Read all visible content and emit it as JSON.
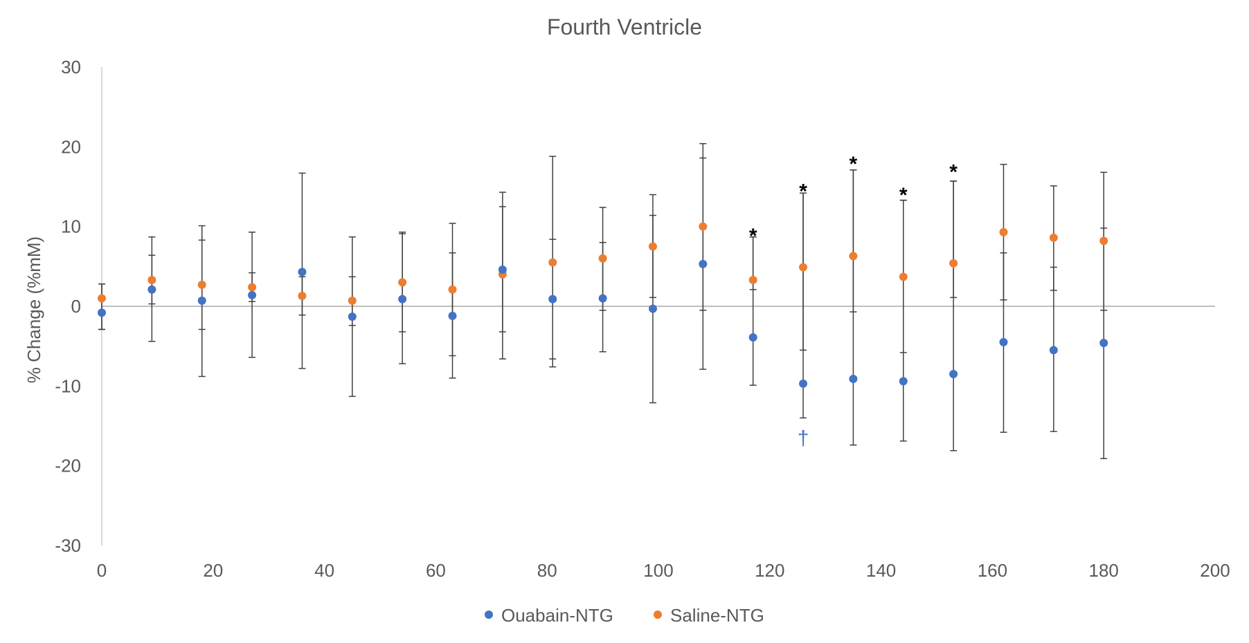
{
  "chart_data": {
    "type": "scatter",
    "title": "Fourth Ventricle",
    "xlabel": "",
    "ylabel": "% Change (%mM)",
    "xlim": [
      0,
      200
    ],
    "ylim": [
      -30,
      30
    ],
    "x_ticks": [
      0,
      20,
      40,
      60,
      80,
      100,
      120,
      140,
      160,
      180,
      200
    ],
    "y_ticks": [
      30,
      20,
      10,
      0,
      -10,
      -20,
      -30
    ],
    "grid": false,
    "legend_position": "bottom-center",
    "series": [
      {
        "name": "Ouabain-NTG",
        "color": "#4472C4",
        "x": [
          0,
          9,
          18,
          27,
          36,
          45,
          54,
          63,
          72,
          81,
          90,
          99,
          108,
          117,
          126,
          135,
          144,
          153,
          162,
          171,
          180
        ],
        "y": [
          -0.8,
          2.1,
          0.7,
          1.4,
          4.3,
          -1.3,
          0.9,
          -1.2,
          4.6,
          0.9,
          1.0,
          -0.3,
          5.3,
          -3.9,
          -9.7,
          -9.1,
          -9.4,
          -8.5,
          -4.5,
          -5.5,
          -4.6
        ],
        "err_low": [
          -2.9,
          -4.4,
          -8.8,
          -6.4,
          -7.8,
          -11.3,
          -7.2,
          -9.0,
          -6.6,
          -7.6,
          -5.7,
          -12.1,
          -7.9,
          -9.9,
          -14.0,
          -17.4,
          -16.9,
          -18.1,
          -15.8,
          -15.7,
          -19.1
        ],
        "err_high": [
          2.8,
          8.7,
          10.1,
          9.3,
          16.7,
          8.7,
          9.3,
          10.4,
          14.3,
          18.8,
          12.4,
          14.0,
          20.4,
          8.7,
          14.2,
          17.1,
          13.3,
          15.7,
          17.8,
          15.1,
          16.8
        ]
      },
      {
        "name": "Saline-NTG",
        "color": "#ED7D31",
        "x": [
          0,
          9,
          18,
          27,
          36,
          45,
          54,
          63,
          72,
          81,
          90,
          99,
          108,
          117,
          126,
          135,
          144,
          153,
          162,
          171,
          180
        ],
        "y": [
          1.0,
          3.3,
          2.7,
          2.4,
          1.3,
          0.7,
          3.0,
          2.1,
          4.0,
          5.5,
          6.0,
          7.5,
          10.0,
          3.3,
          4.9,
          6.3,
          3.7,
          5.4,
          9.3,
          8.6,
          8.2
        ],
        "err_low": [
          -2.9,
          0.3,
          -2.9,
          0.6,
          -1.1,
          -2.4,
          -3.2,
          -6.2,
          -3.2,
          -6.6,
          -0.5,
          1.1,
          -0.5,
          2.1,
          -5.5,
          -0.7,
          -5.8,
          1.1,
          0.8,
          2.0,
          -0.5
        ],
        "err_high": [
          2.8,
          6.4,
          8.3,
          4.2,
          3.7,
          3.7,
          9.1,
          6.7,
          12.5,
          8.4,
          8.0,
          11.4,
          18.6,
          8.7,
          14.2,
          17.1,
          13.3,
          15.7,
          6.7,
          4.9,
          9.8
        ]
      }
    ],
    "annotations": [
      {
        "text": "*",
        "x": 117,
        "y": 9.2,
        "color": "#000000"
      },
      {
        "text": "*",
        "x": 126,
        "y": 14.8,
        "color": "#000000"
      },
      {
        "text": "*",
        "x": 135,
        "y": 18.2,
        "color": "#000000"
      },
      {
        "text": "*",
        "x": 144,
        "y": 14.3,
        "color": "#000000"
      },
      {
        "text": "*",
        "x": 153,
        "y": 17.2,
        "color": "#000000"
      },
      {
        "text": "†",
        "x": 126,
        "y": -16.5,
        "color": "#4472C4"
      }
    ]
  }
}
